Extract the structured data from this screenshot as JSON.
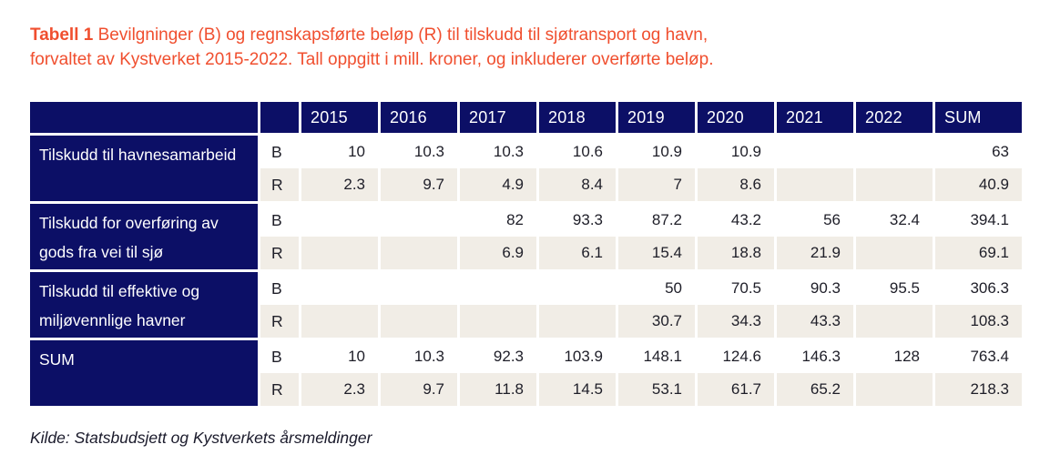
{
  "title": {
    "label": "Tabell 1",
    "line1": "Bevilgninger (B) og regnskapsførte beløp (R) til tilskudd til sjøtransport og havn,",
    "line2": "forvaltet av Kystverket 2015-2022. Tall oppgitt i mill. kroner, og inkluderer overførte beløp."
  },
  "table": {
    "year_headers": [
      "2015",
      "2016",
      "2017",
      "2018",
      "2019",
      "2020",
      "2021",
      "2022",
      "SUM"
    ],
    "row_type_labels": [
      "B",
      "R"
    ],
    "groups": [
      {
        "label": "Tilskudd til havnesamarbeid",
        "B": [
          "10",
          "10.3",
          "10.3",
          "10.6",
          "10.9",
          "10.9",
          "",
          "",
          "63"
        ],
        "R": [
          "2.3",
          "9.7",
          "4.9",
          "8.4",
          "7",
          "8.6",
          "",
          "",
          "40.9"
        ]
      },
      {
        "label": "Tilskudd for overføring av gods fra vei til sjø",
        "B": [
          "",
          "",
          "82",
          "93.3",
          "87.2",
          "43.2",
          "56",
          "32.4",
          "394.1"
        ],
        "R": [
          "",
          "",
          "6.9",
          "6.1",
          "15.4",
          "18.8",
          "21.9",
          "",
          "69.1"
        ]
      },
      {
        "label": "Tilskudd til effektive og miljøvennlige havner",
        "B": [
          "",
          "",
          "",
          "",
          "50",
          "70.5",
          "90.3",
          "95.5",
          "306.3"
        ],
        "R": [
          "",
          "",
          "",
          "",
          "30.7",
          "34.3",
          "43.3",
          "",
          "108.3"
        ]
      },
      {
        "label": "SUM",
        "B": [
          "10",
          "10.3",
          "92.3",
          "103.9",
          "148.1",
          "124.6",
          "146.3",
          "128",
          "763.4"
        ],
        "R": [
          "2.3",
          "9.7",
          "11.8",
          "14.5",
          "53.1",
          "61.7",
          "65.2",
          "",
          "218.3"
        ]
      }
    ]
  },
  "source": "Kilde: Statsbudsjett og Kystverkets årsmeldinger",
  "colors": {
    "header_navy": "#0c0f66",
    "caption_orange": "#f04f2f",
    "row_beige": "#f1ede6",
    "cell_text": "#1e1e28"
  }
}
